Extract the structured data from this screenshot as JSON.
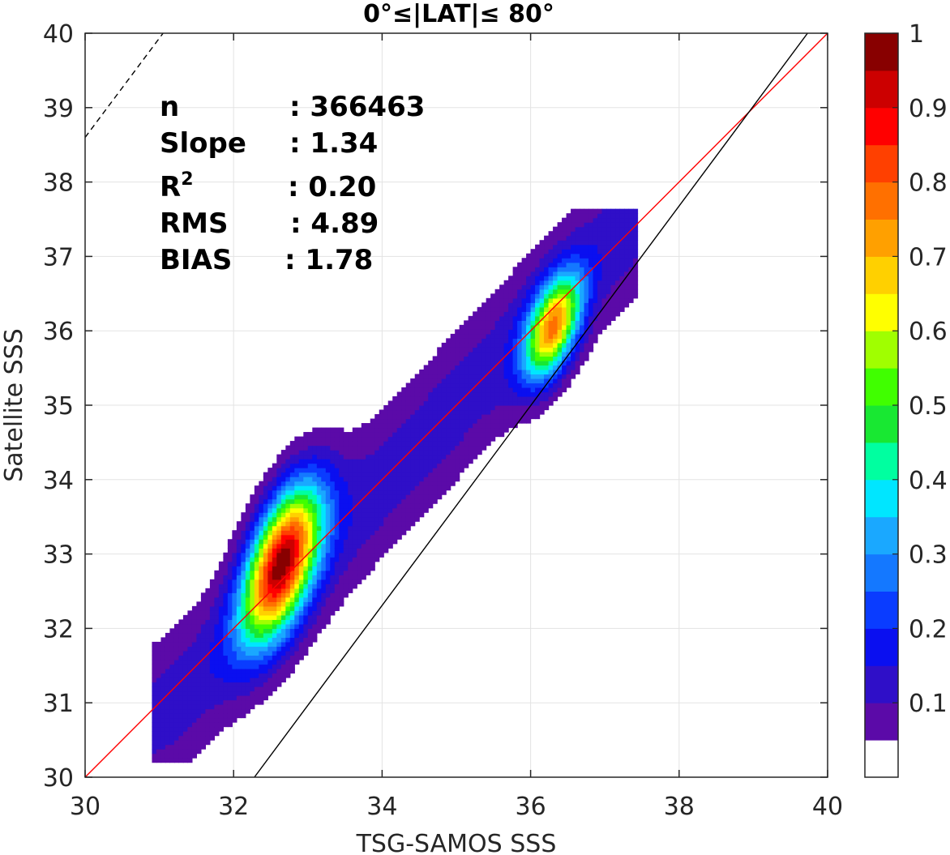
{
  "chart_data": {
    "type": "contour",
    "title": "0°≤|LAT|≤ 80°",
    "xlabel": "TSG-SAMOS SSS",
    "ylabel": "Satellite SSS",
    "xlim": [
      30,
      40
    ],
    "ylim": [
      30,
      40
    ],
    "x_ticks": [
      30,
      32,
      34,
      36,
      38,
      40
    ],
    "y_ticks": [
      30,
      31,
      32,
      33,
      34,
      35,
      36,
      37,
      38,
      39,
      40
    ],
    "grid": true,
    "stats": [
      {
        "name": "n",
        "value": ": 366463"
      },
      {
        "name": "Slope",
        "value": ": 1.34"
      },
      {
        "name": "R",
        "sup": "2",
        "value": ": 0.20"
      },
      {
        "name": "RMS",
        "value": ": 4.89"
      },
      {
        "name": "BIAS",
        "value": ": 1.78"
      }
    ],
    "lines": [
      {
        "name": "one-to-one",
        "color": "#ff0000",
        "style": "solid",
        "points": [
          [
            30,
            30
          ],
          [
            40,
            40
          ]
        ]
      },
      {
        "name": "regression-fit",
        "color": "#000000",
        "style": "solid",
        "points": [
          [
            32.28,
            30
          ],
          [
            39.73,
            40
          ]
        ]
      },
      {
        "name": "reference-dashed",
        "color": "#000000",
        "style": "dashed",
        "points": [
          [
            30,
            38.6
          ],
          [
            31.05,
            40
          ]
        ]
      }
    ],
    "contour_peaks": [
      {
        "x": 32.65,
        "y": 32.9,
        "max_level": 0.85
      },
      {
        "x": 36.3,
        "y": 36.05,
        "max_level": 0.65
      }
    ],
    "colorbar": {
      "tick_labels": [
        "0.1",
        "0.2",
        "0.3",
        "0.4",
        "0.5",
        "0.6",
        "0.7",
        "0.8",
        "0.9",
        "1"
      ],
      "tick_values": [
        0.1,
        0.2,
        0.3,
        0.4,
        0.5,
        0.6,
        0.7,
        0.8,
        0.9,
        1.0
      ],
      "range": [
        0,
        1
      ],
      "colors": [
        "#ffffff",
        "#5b0aa8",
        "#2f0fc8",
        "#0a0ff0",
        "#0a3cff",
        "#1478ff",
        "#1aa8ff",
        "#00e6ff",
        "#00ffa0",
        "#18e832",
        "#40ff00",
        "#a0ff00",
        "#ffff00",
        "#ffd000",
        "#ffa000",
        "#ff7000",
        "#ff4000",
        "#ff0000",
        "#cc0000",
        "#880000"
      ]
    }
  }
}
